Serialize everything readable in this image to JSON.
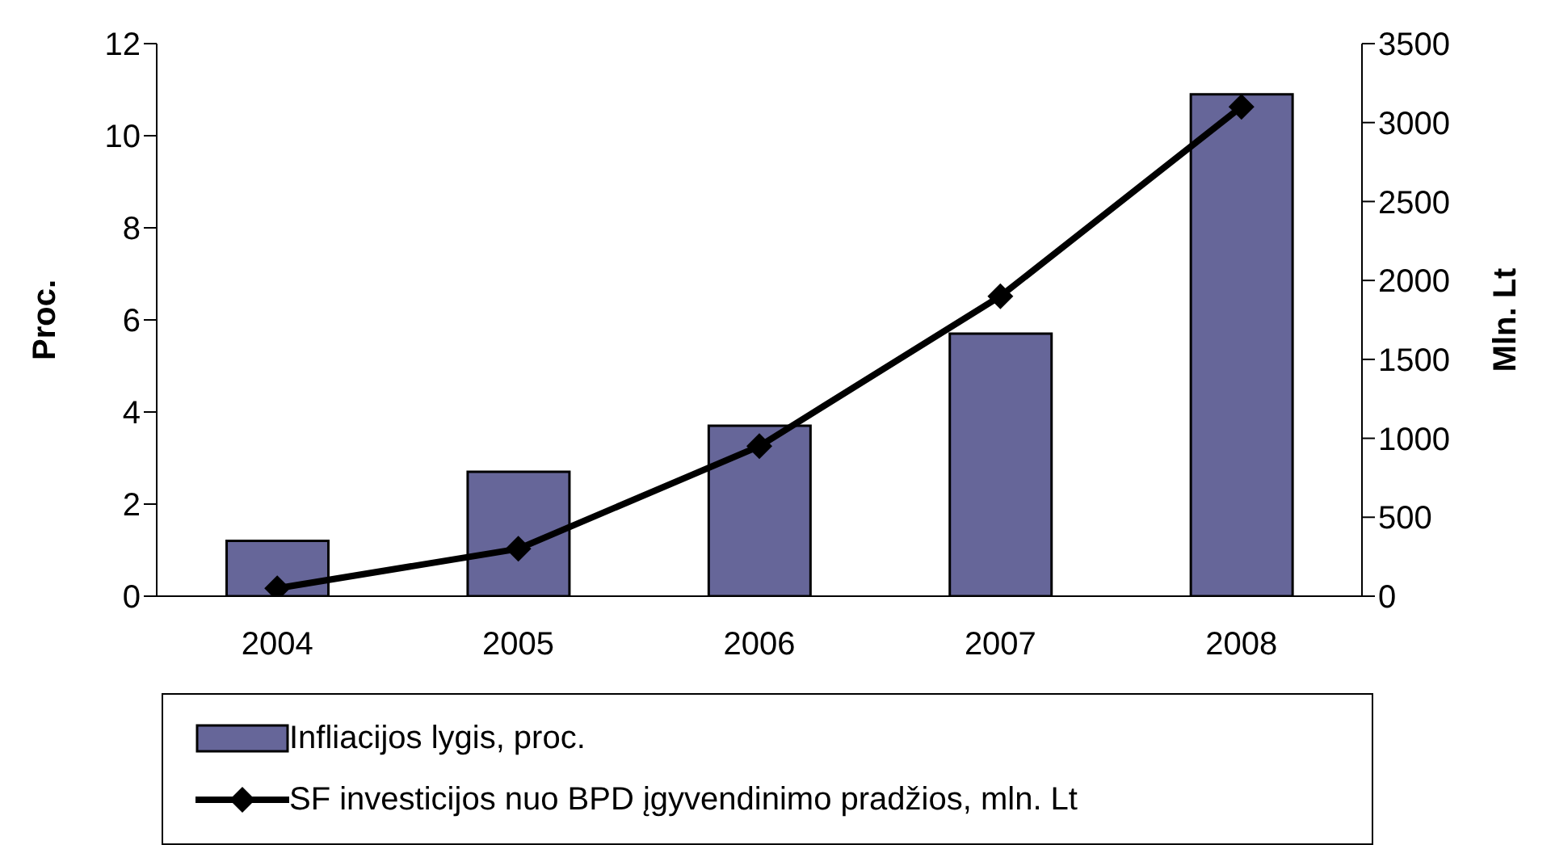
{
  "chart_data": {
    "type": "bar",
    "categories": [
      "2004",
      "2005",
      "2006",
      "2007",
      "2008"
    ],
    "series": [
      {
        "name": "Infliacijos lygis, proc.",
        "color": "#666699",
        "values": [
          1.2,
          2.7,
          3.7,
          5.7,
          10.9
        ]
      },
      {
        "name": "SF investicijos nuo BPD įgyvendinimo pradžios, mln. Lt",
        "type": "line",
        "axis": "y2",
        "color": "#000000",
        "values": [
          50,
          300,
          950,
          1900,
          3100
        ]
      }
    ],
    "ylabel": "Proc.",
    "y2label": "Mln. Lt",
    "ylim": [
      0,
      12
    ],
    "yticks": [
      0,
      2,
      4,
      6,
      8,
      10,
      12
    ],
    "y2lim": [
      0,
      3500
    ],
    "y2ticks": [
      0,
      500,
      1000,
      1500,
      2000,
      2500,
      3000,
      3500
    ],
    "grid": false,
    "legend": "bottom",
    "marker": "diamond",
    "line_style": "solid"
  }
}
